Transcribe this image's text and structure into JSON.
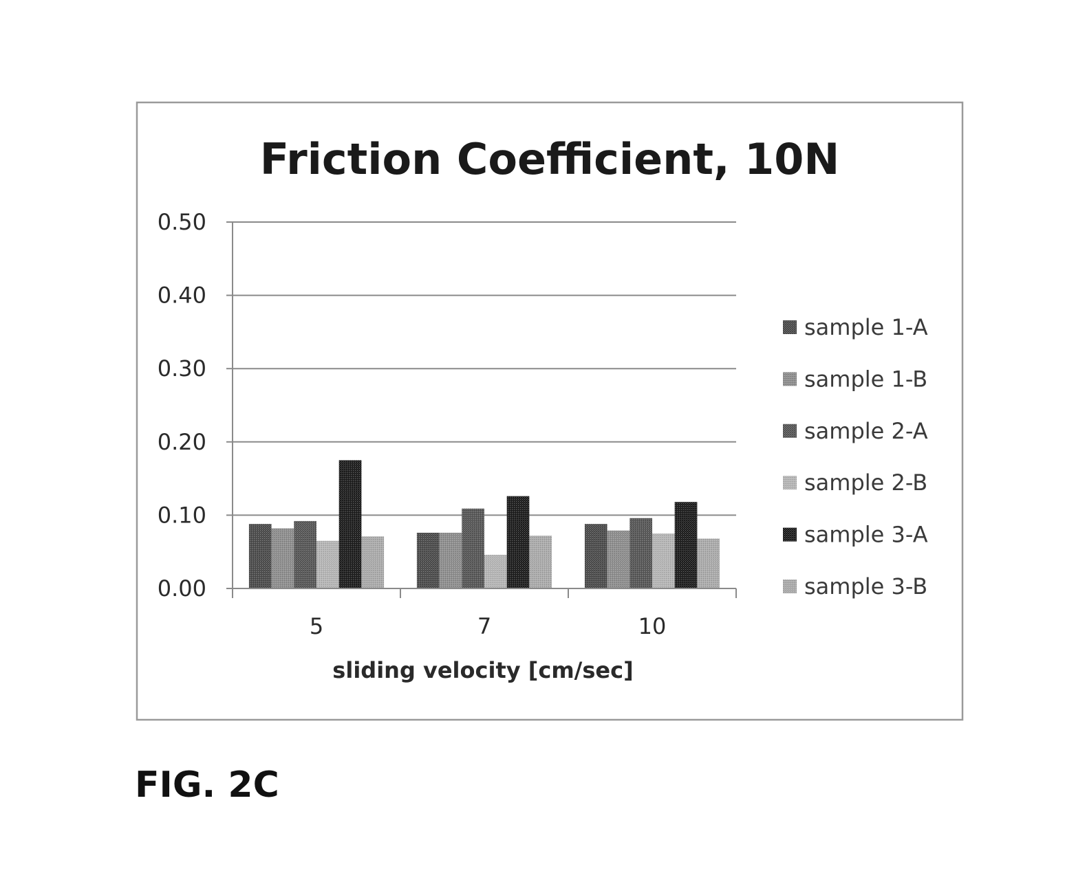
{
  "figure": {
    "caption": "FIG. 2C"
  },
  "chart_data": {
    "type": "bar",
    "title": "Friction Coefficient, 10N",
    "xlabel": "sliding velocity [cm/sec]",
    "ylabel": "",
    "categories": [
      "5",
      "7",
      "10"
    ],
    "ylim": [
      0,
      0.5
    ],
    "yticks": [
      "0.00",
      "0.10",
      "0.20",
      "0.30",
      "0.40",
      "0.50"
    ],
    "grid": true,
    "legend_position": "right",
    "series": [
      {
        "name": "sample 1-A",
        "values": [
          0.088,
          0.076,
          0.088
        ],
        "color": "#4a4a4a"
      },
      {
        "name": "sample 1-B",
        "values": [
          0.082,
          0.076,
          0.079
        ],
        "color": "#8c8c8c"
      },
      {
        "name": "sample 2-A",
        "values": [
          0.092,
          0.109,
          0.096
        ],
        "color": "#555555"
      },
      {
        "name": "sample 2-B",
        "values": [
          0.065,
          0.046,
          0.075
        ],
        "color": "#b4b4b4"
      },
      {
        "name": "sample 3-A",
        "values": [
          0.175,
          0.126,
          0.118
        ],
        "color": "#1c1c1c"
      },
      {
        "name": "sample 3-B",
        "values": [
          0.071,
          0.072,
          0.068
        ],
        "color": "#a9a9a9"
      }
    ]
  }
}
